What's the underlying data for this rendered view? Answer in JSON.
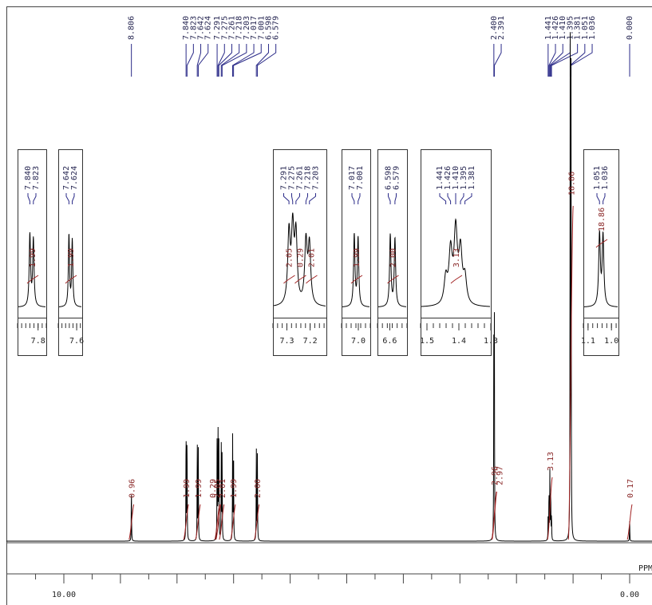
{
  "chart_data": {
    "type": "line",
    "xlabel": "PPM",
    "xlim": [
      10.7,
      -0.25
    ],
    "x_major_ticks": [
      10.0,
      0.0
    ],
    "x_tick_labels": [
      "10.00",
      "0.00"
    ],
    "colors": {
      "spectrum": "#000000",
      "label_line": "#2a2a88",
      "integral": "#a22222"
    },
    "peak_labels": [
      "8.806",
      "7.840",
      "7.823",
      "7.642",
      "7.624",
      "7.291",
      "7.275",
      "7.261",
      "7.218",
      "7.203",
      "7.017",
      "7.001",
      "6.598",
      "6.579",
      "2.400",
      "2.391",
      "1.441",
      "1.426",
      "1.410",
      "1.395",
      "1.381",
      "1.051",
      "1.036",
      "0.000"
    ],
    "peaks": [
      {
        "ppm": 8.806,
        "height": 0.11
      },
      {
        "ppm": 7.84,
        "height": 0.235
      },
      {
        "ppm": 7.823,
        "height": 0.22
      },
      {
        "ppm": 7.642,
        "height": 0.205
      },
      {
        "ppm": 7.624,
        "height": 0.19
      },
      {
        "ppm": 7.291,
        "height": 0.215
      },
      {
        "ppm": 7.275,
        "height": 0.22
      },
      {
        "ppm": 7.261,
        "height": 0.205
      },
      {
        "ppm": 7.218,
        "height": 0.19
      },
      {
        "ppm": 7.203,
        "height": 0.18
      },
      {
        "ppm": 7.017,
        "height": 0.21
      },
      {
        "ppm": 7.001,
        "height": 0.2
      },
      {
        "ppm": 6.598,
        "height": 0.19
      },
      {
        "ppm": 6.579,
        "height": 0.18
      },
      {
        "ppm": 2.4,
        "height": 0.44
      },
      {
        "ppm": 2.391,
        "height": 0.42
      },
      {
        "ppm": 1.441,
        "height": 0.05
      },
      {
        "ppm": 1.426,
        "height": 0.1
      },
      {
        "ppm": 1.41,
        "height": 0.14
      },
      {
        "ppm": 1.395,
        "height": 0.1
      },
      {
        "ppm": 1.381,
        "height": 0.05
      },
      {
        "ppm": 1.051,
        "height": 0.99
      },
      {
        "ppm": 1.036,
        "height": 0.97
      },
      {
        "ppm": 0.0,
        "height": 0.04
      }
    ],
    "integrals": [
      {
        "label": "0.96",
        "ppm": 8.806
      },
      {
        "label": "1.99",
        "ppm": 7.84
      },
      {
        "label": "1.99",
        "ppm": 7.63
      },
      {
        "label": "0.29",
        "ppm": 7.29
      },
      {
        "label": "2.05",
        "ppm": 7.27
      },
      {
        "label": "2.01",
        "ppm": 7.21
      },
      {
        "label": "1.99",
        "ppm": 7.01
      },
      {
        "label": "2.00",
        "ppm": 6.59
      },
      {
        "label": "2.96",
        "ppm": 2.395
      },
      {
        "label": "2.97",
        "ppm": 2.39
      },
      {
        "label": "3.13",
        "ppm": 1.41
      },
      {
        "label": "18.86",
        "ppm": 1.04
      },
      {
        "label": "0.17",
        "ppm": 0.0
      }
    ],
    "insets": [
      {
        "peak_labels": [
          "7.840",
          "7.823"
        ],
        "integral_labels": [
          "1.99"
        ],
        "xlim": [
          7.9,
          7.76
        ],
        "ticks": [
          7.8
        ],
        "tick_labels": [
          "7.8"
        ]
      },
      {
        "peak_labels": [
          "7.642",
          "7.624"
        ],
        "integral_labels": [
          "1.99"
        ],
        "xlim": [
          7.7,
          7.57
        ],
        "ticks": [
          7.6
        ],
        "tick_labels": [
          "7.6"
        ]
      },
      {
        "peak_labels": [
          "7.291",
          "7.275",
          "7.261",
          "7.218",
          "7.203"
        ],
        "integral_labels": [
          "2.05",
          "0.29",
          "2.01"
        ],
        "xlim": [
          7.36,
          7.13
        ],
        "ticks": [
          7.3,
          7.2
        ],
        "tick_labels": [
          "7.3",
          "7.2"
        ]
      },
      {
        "peak_labels": [
          "7.017",
          "7.001"
        ],
        "integral_labels": [
          "1.99"
        ],
        "xlim": [
          7.07,
          6.95
        ],
        "ticks": [
          7.0
        ],
        "tick_labels": [
          "7.0"
        ]
      },
      {
        "peak_labels": [
          "6.598",
          "6.579"
        ],
        "integral_labels": [
          "2.00"
        ],
        "xlim": [
          6.65,
          6.53
        ],
        "ticks": [
          6.6
        ],
        "tick_labels": [
          "6.6"
        ]
      },
      {
        "peak_labels": [
          "1.441",
          "1.426",
          "1.410",
          "1.395",
          "1.381"
        ],
        "integral_labels": [
          "3.13"
        ],
        "xlim": [
          1.52,
          1.3
        ],
        "ticks": [
          1.5,
          1.4,
          1.3
        ],
        "tick_labels": [
          "1.5",
          "1.4",
          "1.3"
        ]
      },
      {
        "peak_labels": [
          "1.051",
          "1.036"
        ],
        "integral_labels": [
          "18.86"
        ],
        "xlim": [
          1.12,
          0.97
        ],
        "ticks": [
          1.1,
          1.0
        ],
        "tick_labels": [
          "1.1",
          "1.0"
        ]
      }
    ]
  }
}
